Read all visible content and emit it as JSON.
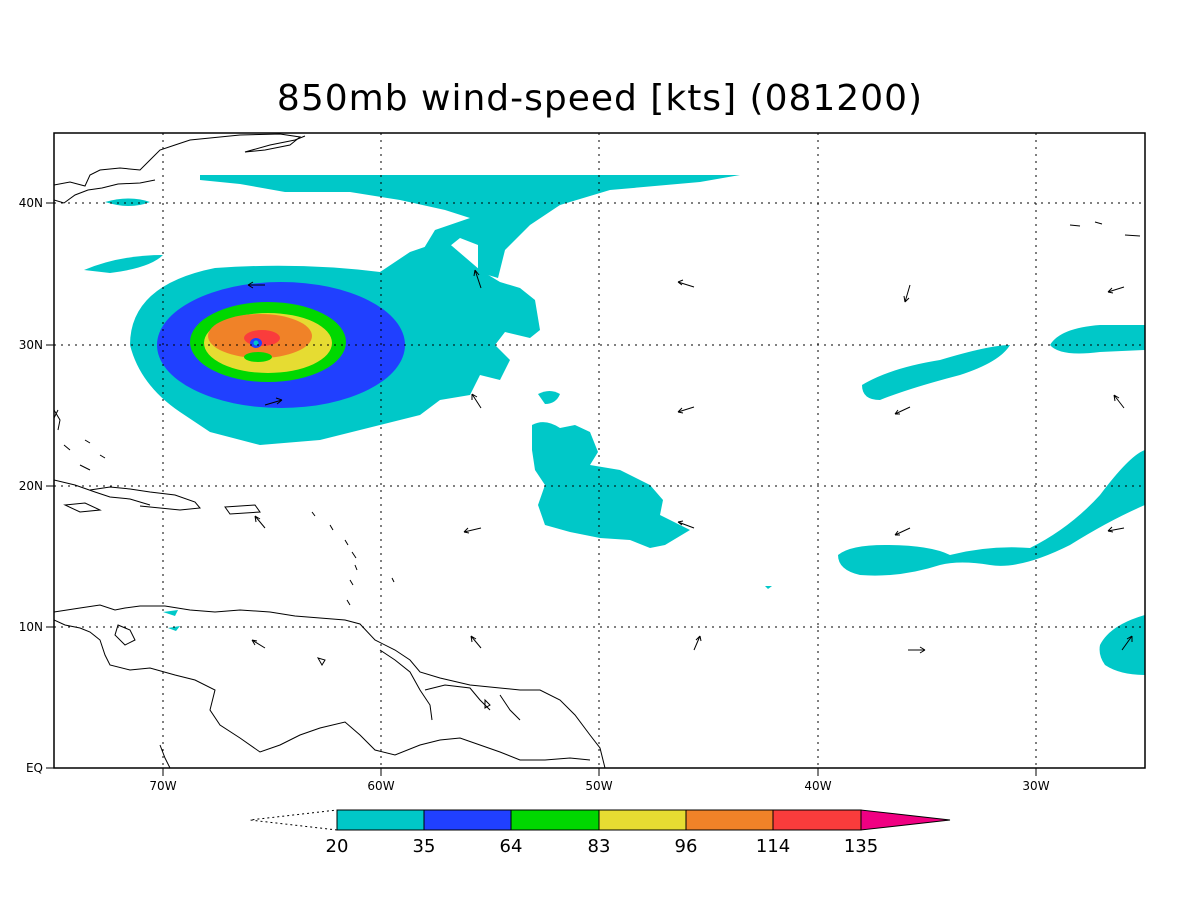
{
  "title": "850mb wind-speed [kts] (081200)",
  "map": {
    "lon_range": [
      -75,
      -25
    ],
    "lat_range": [
      0,
      45
    ],
    "lon_ticks": [
      {
        "value": -70,
        "label": "70W"
      },
      {
        "value": -60,
        "label": "60W"
      },
      {
        "value": -50,
        "label": "50W"
      },
      {
        "value": -40,
        "label": "40W"
      },
      {
        "value": -30,
        "label": "30W"
      }
    ],
    "lat_ticks": [
      {
        "value": 0,
        "label": "EQ"
      },
      {
        "value": 10,
        "label": "10N"
      },
      {
        "value": 20,
        "label": "20N"
      },
      {
        "value": 30,
        "label": "30N"
      },
      {
        "value": 40,
        "label": "40N"
      }
    ],
    "grid": true,
    "storm_center": {
      "lon": -65.3,
      "lat": 30.1
    }
  },
  "colorbar": {
    "levels": [
      "20",
      "35",
      "64",
      "83",
      "96",
      "114",
      "135"
    ],
    "colors": [
      "#00c8c8",
      "#2040ff",
      "#00d800",
      "#e6dc32",
      "#f08228",
      "#fa3c3c",
      "#f00082"
    ]
  }
}
